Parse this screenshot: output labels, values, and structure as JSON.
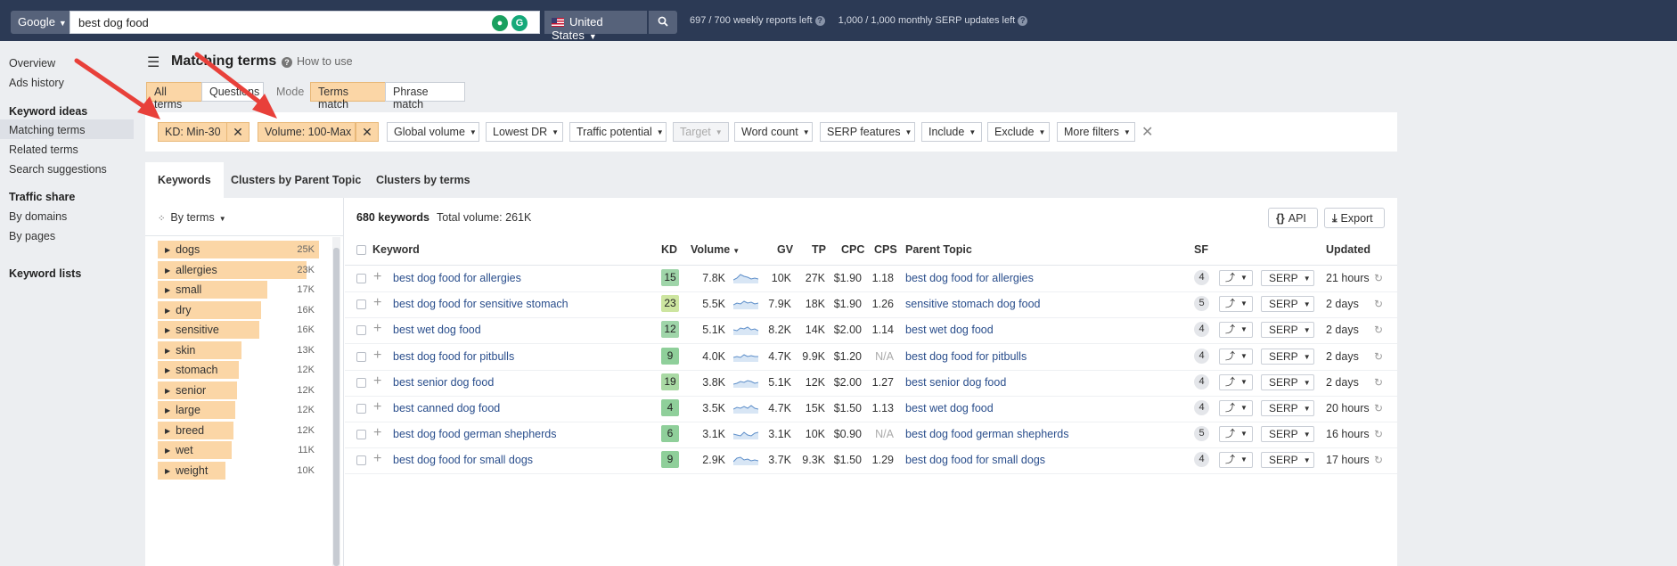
{
  "topbar": {
    "engine": "Google",
    "query": "best dog food",
    "country": "United States",
    "weekly_used": "697",
    "weekly_total": "700",
    "weekly_label": "weekly reports left",
    "monthly_used": "1,000",
    "monthly_total": "1,000",
    "monthly_label": "monthly SERP updates left",
    "icons": [
      "search-icon",
      "help-icon",
      "extension-icon",
      "grammarly-icon",
      "flag-us-icon"
    ]
  },
  "sidebar": {
    "overview": "Overview",
    "ads_history": "Ads history",
    "keyword_ideas": "Keyword ideas",
    "matching_terms": "Matching terms",
    "related_terms": "Related terms",
    "search_suggestions": "Search suggestions",
    "traffic_share": "Traffic share",
    "by_domains": "By domains",
    "by_pages": "By pages",
    "keyword_lists": "Keyword lists"
  },
  "header": {
    "title": "Matching terms",
    "how_to": "How to use",
    "all_terms": "All terms",
    "questions": "Questions",
    "mode_label": "Mode",
    "terms_match": "Terms match",
    "phrase_match": "Phrase match"
  },
  "filters": {
    "kd": "KD: Min-30",
    "volume": "Volume: 100-Max",
    "global_volume": "Global volume",
    "lowest_dr": "Lowest DR",
    "traffic_potential": "Traffic potential",
    "target": "Target",
    "word_count": "Word count",
    "serp_features": "SERP features",
    "include": "Include",
    "exclude": "Exclude",
    "more_filters": "More filters"
  },
  "tabs": {
    "keywords": "Keywords",
    "clusters_parent": "Clusters by Parent Topic",
    "clusters_terms": "Clusters by terms"
  },
  "left_panel": {
    "by_terms": "By terms",
    "terms": [
      {
        "label": "dogs",
        "count": "25K",
        "fill": 1.0
      },
      {
        "label": "allergies",
        "count": "23K",
        "fill": 0.92
      },
      {
        "label": "small",
        "count": "17K",
        "fill": 0.68
      },
      {
        "label": "dry",
        "count": "16K",
        "fill": 0.64
      },
      {
        "label": "sensitive",
        "count": "16K",
        "fill": 0.63
      },
      {
        "label": "skin",
        "count": "13K",
        "fill": 0.52
      },
      {
        "label": "stomach",
        "count": "12K",
        "fill": 0.5
      },
      {
        "label": "senior",
        "count": "12K",
        "fill": 0.49
      },
      {
        "label": "large",
        "count": "12K",
        "fill": 0.48
      },
      {
        "label": "breed",
        "count": "12K",
        "fill": 0.47
      },
      {
        "label": "wet",
        "count": "11K",
        "fill": 0.46
      },
      {
        "label": "weight",
        "count": "10K",
        "fill": 0.42
      }
    ]
  },
  "table": {
    "count": "680 keywords",
    "total_volume": "Total volume: 261K",
    "api": "API",
    "export": "Export",
    "headers": {
      "keyword": "Keyword",
      "kd": "KD",
      "volume": "Volume",
      "gv": "GV",
      "tp": "TP",
      "cpc": "CPC",
      "cps": "CPS",
      "parent": "Parent Topic",
      "sf": "SF",
      "updated": "Updated"
    },
    "serp_label": "SERP",
    "rows": [
      {
        "keyword": "best dog food for allergies",
        "kd": "15",
        "kd_color": "#9fd5a9",
        "volume": "7.8K",
        "gv": "10K",
        "tp": "27K",
        "cpc": "$1.90",
        "cps": "1.18",
        "parent": "best dog food for allergies",
        "sf": "4",
        "updated": "21 hours"
      },
      {
        "keyword": "best dog food for sensitive stomach",
        "kd": "23",
        "kd_color": "#cde5a0",
        "volume": "5.5K",
        "gv": "7.9K",
        "tp": "18K",
        "cpc": "$1.90",
        "cps": "1.26",
        "parent": "sensitive stomach dog food",
        "sf": "5",
        "updated": "2 days"
      },
      {
        "keyword": "best wet dog food",
        "kd": "12",
        "kd_color": "#9fd5a9",
        "volume": "5.1K",
        "gv": "8.2K",
        "tp": "14K",
        "cpc": "$2.00",
        "cps": "1.14",
        "parent": "best wet dog food",
        "sf": "4",
        "updated": "2 days"
      },
      {
        "keyword": "best dog food for pitbulls",
        "kd": "9",
        "kd_color": "#8fcf9a",
        "volume": "4.0K",
        "gv": "4.7K",
        "tp": "9.9K",
        "cpc": "$1.20",
        "cps": "N/A",
        "parent": "best dog food for pitbulls",
        "sf": "4",
        "updated": "2 days"
      },
      {
        "keyword": "best senior dog food",
        "kd": "19",
        "kd_color": "#a9d9a4",
        "volume": "3.8K",
        "gv": "5.1K",
        "tp": "12K",
        "cpc": "$2.00",
        "cps": "1.27",
        "parent": "best senior dog food",
        "sf": "4",
        "updated": "2 days"
      },
      {
        "keyword": "best canned dog food",
        "kd": "4",
        "kd_color": "#8fcf9a",
        "volume": "3.5K",
        "gv": "4.7K",
        "tp": "15K",
        "cpc": "$1.50",
        "cps": "1.13",
        "parent": "best wet dog food",
        "sf": "4",
        "updated": "20 hours"
      },
      {
        "keyword": "best dog food german shepherds",
        "kd": "6",
        "kd_color": "#8fcf9a",
        "volume": "3.1K",
        "gv": "3.1K",
        "tp": "10K",
        "cpc": "$0.90",
        "cps": "N/A",
        "parent": "best dog food german shepherds",
        "sf": "5",
        "updated": "16 hours"
      },
      {
        "keyword": "best dog food for small dogs",
        "kd": "9",
        "kd_color": "#8fcf9a",
        "volume": "2.9K",
        "gv": "3.7K",
        "tp": "9.3K",
        "cpc": "$1.50",
        "cps": "1.29",
        "parent": "best dog food for small dogs",
        "sf": "4",
        "updated": "17 hours"
      }
    ]
  },
  "colors": {
    "accent": "#fbd6a6",
    "topbar": "#2c3a55",
    "link": "#2a4e8c",
    "annotation_arrow": "#e8403a"
  }
}
